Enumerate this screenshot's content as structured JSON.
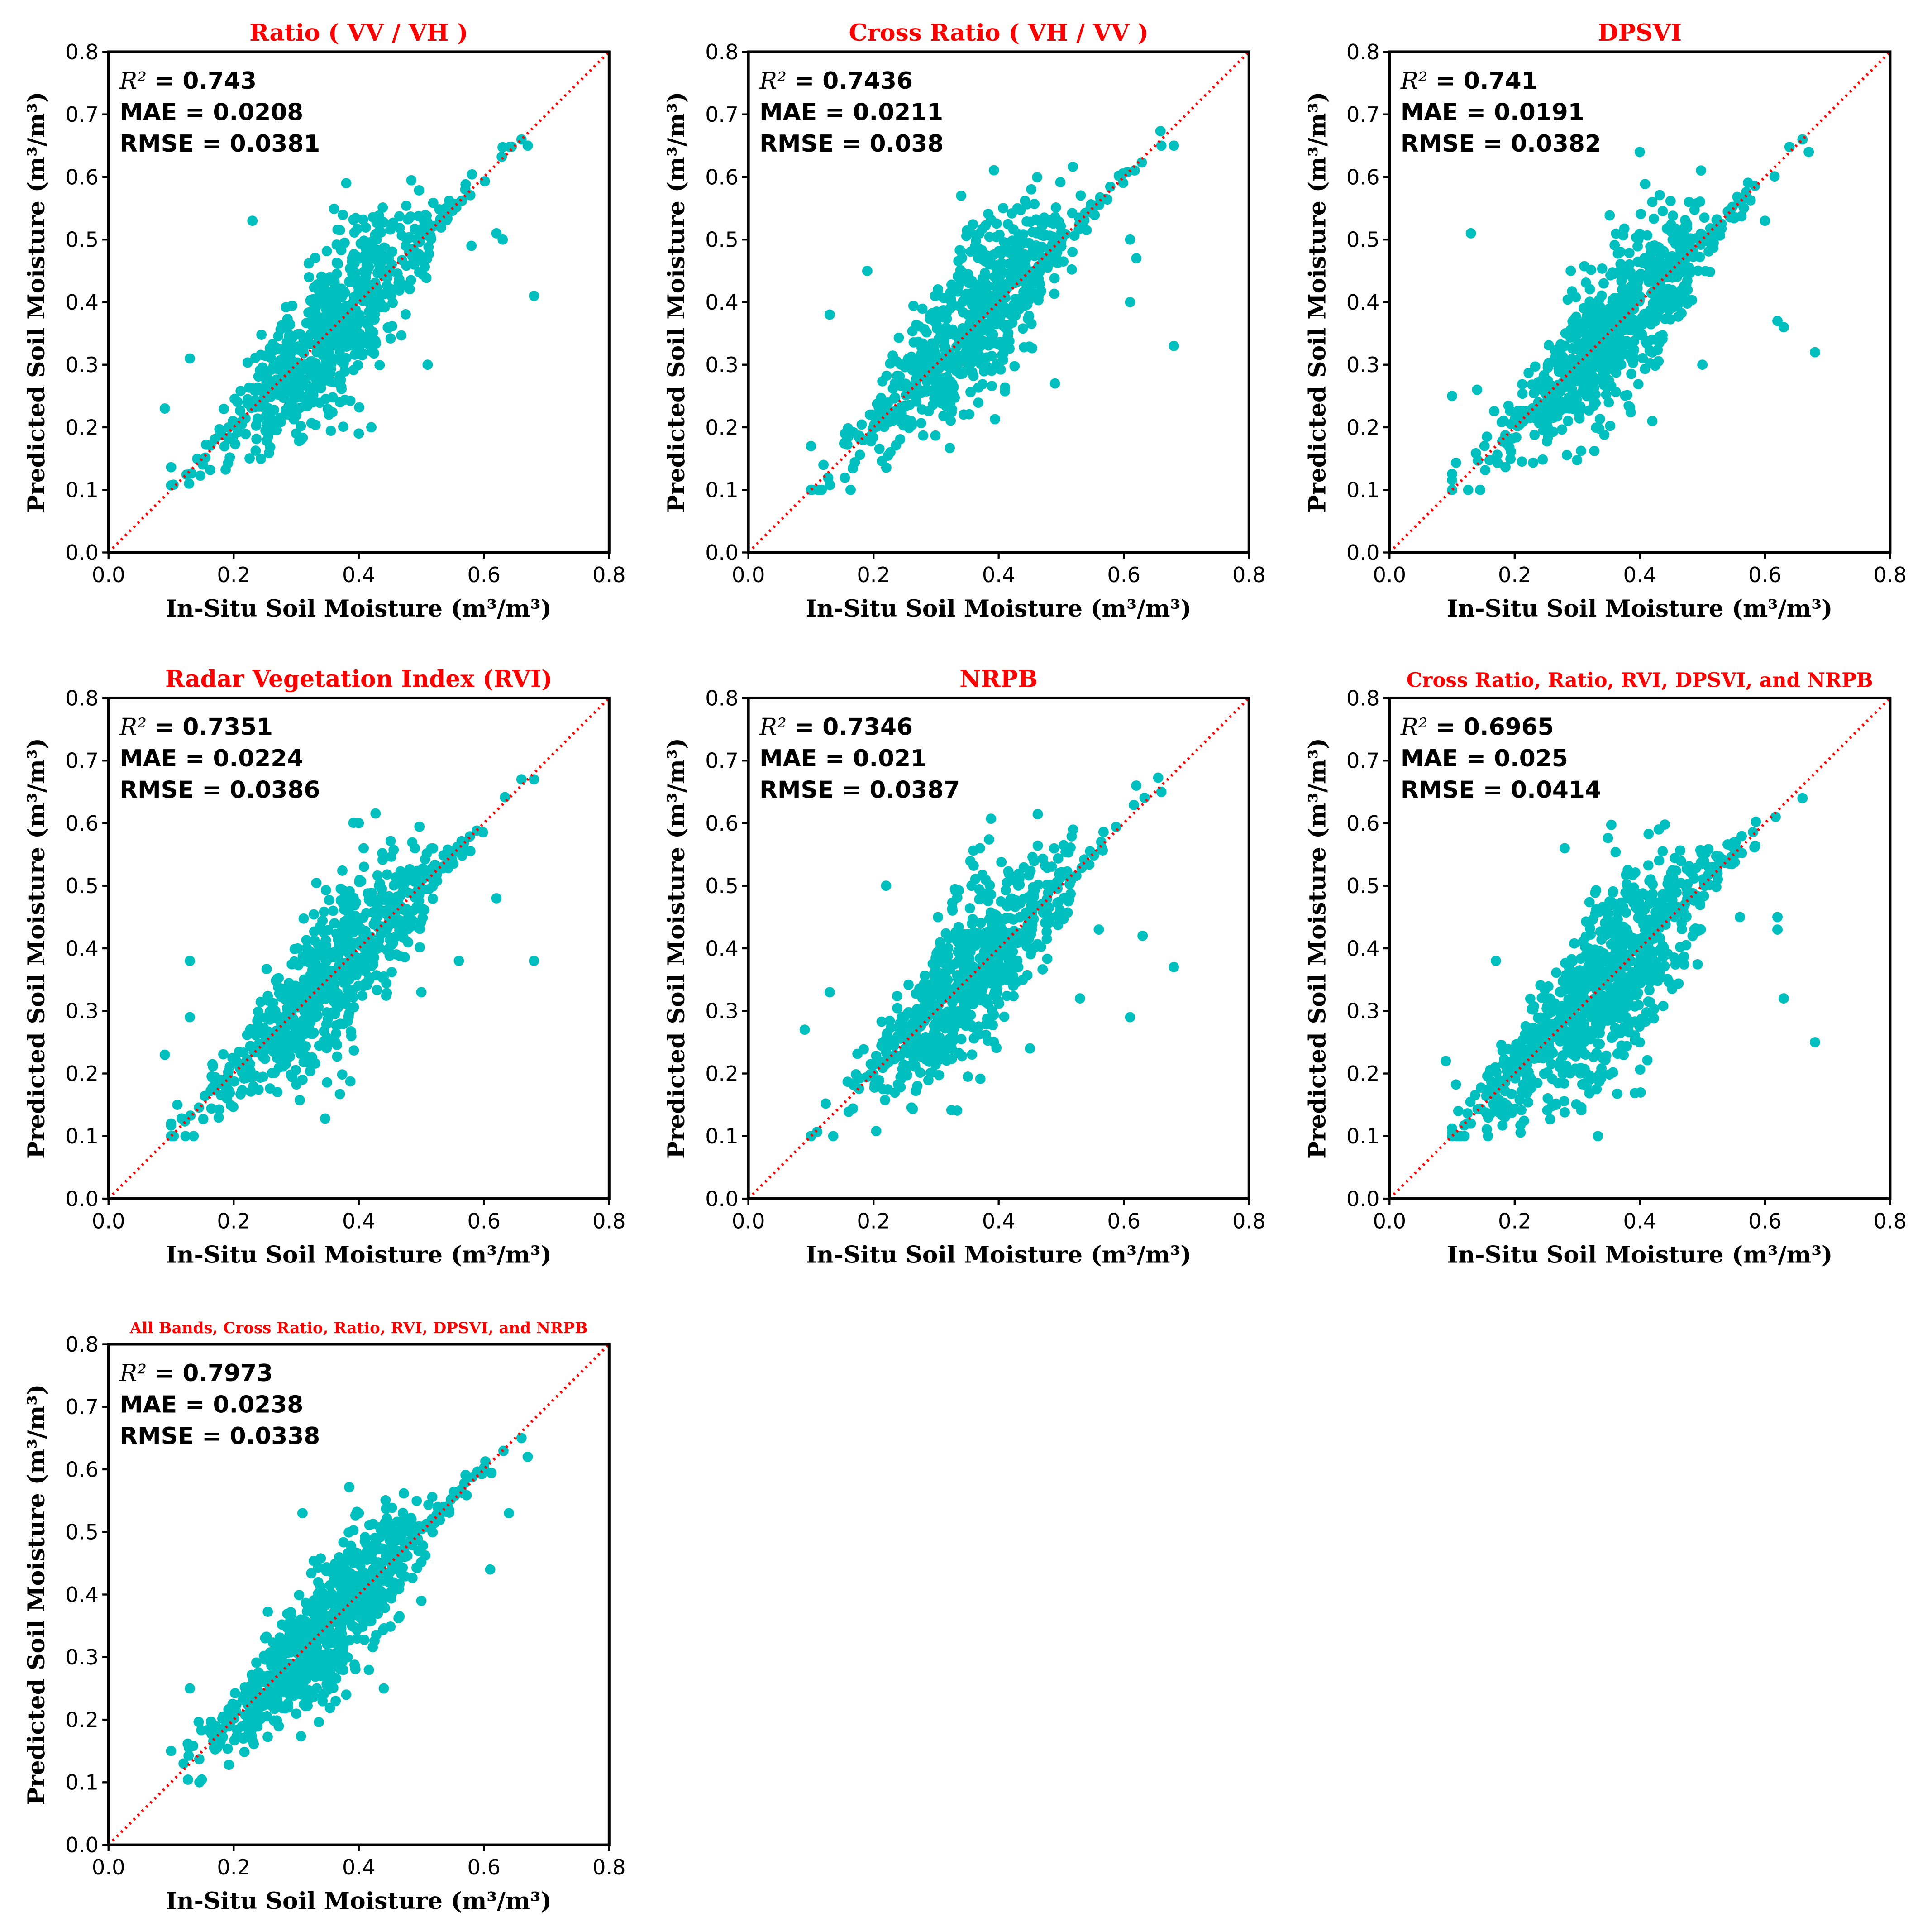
{
  "figure": {
    "xlabel": "In-Situ Soil Moisture",
    "ylabel": "Predicted Soil Moisture",
    "unit_label": "m³/m³",
    "point_color": "#00bfbf",
    "reference_line_color": "#ff0000",
    "title_color": "#ff0000"
  },
  "chart_data": [
    {
      "type": "scatter",
      "title": "Ratio ( VV / VH )",
      "xlabel": "In-Situ Soil Moisture (m³/m³)",
      "ylabel": "Predicted Soil Moisture (m³/m³)",
      "xlim": [
        0,
        0.8
      ],
      "ylim": [
        0,
        0.8
      ],
      "xticks": [
        "0.0",
        "0.2",
        "0.4",
        "0.6",
        "0.8"
      ],
      "yticks": [
        "0.0",
        "0.1",
        "0.2",
        "0.3",
        "0.4",
        "0.5",
        "0.6",
        "0.7",
        "0.8"
      ],
      "metrics": {
        "r2_label": "R²",
        "r2": "0.743",
        "mae_label": "MAE",
        "mae": "0.0208",
        "rmse_label": "RMSE",
        "rmse": "0.0381"
      },
      "reference_line": [
        [
          0,
          0
        ],
        [
          0.8,
          0.8
        ]
      ],
      "cluster": {
        "x_mean": 0.36,
        "x_sd": 0.09,
        "noise_sd": 0.045,
        "n": 700,
        "x_min": 0.1,
        "x_max": 0.67,
        "seed": 11
      },
      "outliers": [
        [
          0.09,
          0.23
        ],
        [
          0.13,
          0.31
        ],
        [
          0.23,
          0.53
        ],
        [
          0.38,
          0.59
        ],
        [
          0.62,
          0.51
        ],
        [
          0.63,
          0.5
        ],
        [
          0.68,
          0.41
        ],
        [
          0.58,
          0.49
        ],
        [
          0.66,
          0.66
        ],
        [
          0.67,
          0.65
        ],
        [
          0.4,
          0.19
        ],
        [
          0.42,
          0.2
        ],
        [
          0.51,
          0.3
        ],
        [
          0.37,
          0.24
        ],
        [
          0.3,
          0.19
        ]
      ]
    },
    {
      "type": "scatter",
      "title": "Cross Ratio ( VH / VV )",
      "xlabel": "In-Situ Soil Moisture (m³/m³)",
      "ylabel": "Predicted Soil Moisture (m³/m³)",
      "xlim": [
        0,
        0.8
      ],
      "ylim": [
        0,
        0.8
      ],
      "xticks": [
        "0.0",
        "0.2",
        "0.4",
        "0.6",
        "0.8"
      ],
      "yticks": [
        "0.0",
        "0.1",
        "0.2",
        "0.3",
        "0.4",
        "0.5",
        "0.6",
        "0.7",
        "0.8"
      ],
      "metrics": {
        "r2_label": "R²",
        "r2": "0.7436",
        "mae_label": "MAE",
        "mae": "0.0211",
        "rmse_label": "RMSE",
        "rmse": "0.038"
      },
      "reference_line": [
        [
          0,
          0
        ],
        [
          0.8,
          0.8
        ]
      ],
      "cluster": {
        "x_mean": 0.36,
        "x_sd": 0.09,
        "noise_sd": 0.045,
        "n": 700,
        "x_min": 0.1,
        "x_max": 0.67,
        "seed": 23
      },
      "outliers": [
        [
          0.1,
          0.17
        ],
        [
          0.12,
          0.14
        ],
        [
          0.13,
          0.38
        ],
        [
          0.19,
          0.45
        ],
        [
          0.34,
          0.57
        ],
        [
          0.61,
          0.5
        ],
        [
          0.62,
          0.47
        ],
        [
          0.61,
          0.4
        ],
        [
          0.68,
          0.33
        ],
        [
          0.49,
          0.27
        ],
        [
          0.66,
          0.65
        ],
        [
          0.68,
          0.65
        ],
        [
          0.26,
          0.21
        ],
        [
          0.43,
          0.55
        ]
      ]
    },
    {
      "type": "scatter",
      "title": "DPSVI",
      "xlabel": "In-Situ Soil Moisture (m³/m³)",
      "ylabel": "Predicted Soil Moisture (m³/m³)",
      "xlim": [
        0,
        0.8
      ],
      "ylim": [
        0,
        0.8
      ],
      "xticks": [
        "0.0",
        "0.2",
        "0.4",
        "0.6",
        "0.8"
      ],
      "yticks": [
        "0.0",
        "0.1",
        "0.2",
        "0.3",
        "0.4",
        "0.5",
        "0.6",
        "0.7",
        "0.8"
      ],
      "metrics": {
        "r2_label": "R²",
        "r2": "0.741",
        "mae_label": "MAE",
        "mae": "0.0191",
        "rmse_label": "RMSE",
        "rmse": "0.0382"
      },
      "reference_line": [
        [
          0,
          0
        ],
        [
          0.8,
          0.8
        ]
      ],
      "cluster": {
        "x_mean": 0.36,
        "x_sd": 0.09,
        "noise_sd": 0.045,
        "n": 700,
        "x_min": 0.1,
        "x_max": 0.67,
        "seed": 37
      },
      "outliers": [
        [
          0.1,
          0.25
        ],
        [
          0.13,
          0.51
        ],
        [
          0.14,
          0.26
        ],
        [
          0.4,
          0.64
        ],
        [
          0.42,
          0.56
        ],
        [
          0.6,
          0.53
        ],
        [
          0.62,
          0.37
        ],
        [
          0.63,
          0.36
        ],
        [
          0.68,
          0.32
        ],
        [
          0.5,
          0.3
        ],
        [
          0.66,
          0.66
        ],
        [
          0.67,
          0.64
        ],
        [
          0.42,
          0.21
        ]
      ]
    },
    {
      "type": "scatter",
      "title": "Radar Vegetation Index (RVI)",
      "xlabel": "In-Situ Soil Moisture (m³/m³)",
      "ylabel": "Predicted Soil Moisture (m³/m³)",
      "xlim": [
        0,
        0.8
      ],
      "ylim": [
        0,
        0.8
      ],
      "xticks": [
        "0.0",
        "0.2",
        "0.4",
        "0.6",
        "0.8"
      ],
      "yticks": [
        "0.0",
        "0.1",
        "0.2",
        "0.3",
        "0.4",
        "0.5",
        "0.6",
        "0.7",
        "0.8"
      ],
      "metrics": {
        "r2_label": "R²",
        "r2": "0.7351",
        "mae_label": "MAE",
        "mae": "0.0224",
        "rmse_label": "RMSE",
        "rmse": "0.0386"
      },
      "reference_line": [
        [
          0,
          0
        ],
        [
          0.8,
          0.8
        ]
      ],
      "cluster": {
        "x_mean": 0.36,
        "x_sd": 0.09,
        "noise_sd": 0.045,
        "n": 700,
        "x_min": 0.1,
        "x_max": 0.67,
        "seed": 53
      },
      "outliers": [
        [
          0.09,
          0.23
        ],
        [
          0.13,
          0.38
        ],
        [
          0.13,
          0.29
        ],
        [
          0.4,
          0.6
        ],
        [
          0.62,
          0.48
        ],
        [
          0.68,
          0.38
        ],
        [
          0.56,
          0.38
        ],
        [
          0.5,
          0.33
        ],
        [
          0.31,
          0.19
        ],
        [
          0.66,
          0.67
        ],
        [
          0.68,
          0.67
        ],
        [
          0.11,
          0.15
        ]
      ]
    },
    {
      "type": "scatter",
      "title": "NRPB",
      "xlabel": "In-Situ Soil Moisture (m³/m³)",
      "ylabel": "Predicted Soil Moisture (m³/m³)",
      "xlim": [
        0,
        0.8
      ],
      "ylim": [
        0,
        0.8
      ],
      "xticks": [
        "0.0",
        "0.2",
        "0.4",
        "0.6",
        "0.8"
      ],
      "yticks": [
        "0.0",
        "0.1",
        "0.2",
        "0.3",
        "0.4",
        "0.5",
        "0.6",
        "0.7",
        "0.8"
      ],
      "metrics": {
        "r2_label": "R²",
        "r2": "0.7346",
        "mae_label": "MAE",
        "mae": "0.021",
        "rmse_label": "RMSE",
        "rmse": "0.0387"
      },
      "reference_line": [
        [
          0,
          0
        ],
        [
          0.8,
          0.8
        ]
      ],
      "cluster": {
        "x_mean": 0.36,
        "x_sd": 0.09,
        "noise_sd": 0.045,
        "n": 700,
        "x_min": 0.1,
        "x_max": 0.67,
        "seed": 71
      },
      "outliers": [
        [
          0.09,
          0.27
        ],
        [
          0.13,
          0.33
        ],
        [
          0.22,
          0.5
        ],
        [
          0.37,
          0.56
        ],
        [
          0.56,
          0.43
        ],
        [
          0.61,
          0.29
        ],
        [
          0.63,
          0.42
        ],
        [
          0.68,
          0.37
        ],
        [
          0.53,
          0.32
        ],
        [
          0.27,
          0.18
        ],
        [
          0.45,
          0.24
        ],
        [
          0.66,
          0.65
        ],
        [
          0.62,
          0.66
        ]
      ]
    },
    {
      "type": "scatter",
      "title": "Cross Ratio, Ratio, RVI, DPSVI, and NRPB",
      "xlabel": "In-Situ Soil Moisture (m³/m³)",
      "ylabel": "Predicted Soil Moisture (m³/m³)",
      "xlim": [
        0,
        0.8
      ],
      "ylim": [
        0,
        0.8
      ],
      "xticks": [
        "0.0",
        "0.2",
        "0.4",
        "0.6",
        "0.8"
      ],
      "yticks": [
        "0.0",
        "0.1",
        "0.2",
        "0.3",
        "0.4",
        "0.5",
        "0.6",
        "0.7",
        "0.8"
      ],
      "metrics": {
        "r2_label": "R²",
        "r2": "0.6965",
        "mae_label": "MAE",
        "mae": "0.025",
        "rmse_label": "RMSE",
        "rmse": "0.0414"
      },
      "reference_line": [
        [
          0,
          0
        ],
        [
          0.8,
          0.8
        ]
      ],
      "cluster": {
        "x_mean": 0.34,
        "x_sd": 0.1,
        "noise_sd": 0.05,
        "n": 850,
        "x_min": 0.1,
        "x_max": 0.67,
        "seed": 89
      },
      "outliers": [
        [
          0.09,
          0.22
        ],
        [
          0.11,
          0.14
        ],
        [
          0.17,
          0.38
        ],
        [
          0.28,
          0.56
        ],
        [
          0.56,
          0.45
        ],
        [
          0.62,
          0.45
        ],
        [
          0.62,
          0.43
        ],
        [
          0.63,
          0.32
        ],
        [
          0.68,
          0.25
        ],
        [
          0.45,
          0.52
        ],
        [
          0.66,
          0.64
        ],
        [
          0.13,
          0.12
        ],
        [
          0.32,
          0.19
        ]
      ]
    },
    {
      "type": "scatter",
      "title": "All Bands, Cross Ratio, Ratio, RVI, DPSVI, and NRPB",
      "xlabel": "In-Situ Soil Moisture (m³/m³)",
      "ylabel": "Predicted Soil Moisture (m³/m³)",
      "xlim": [
        0,
        0.8
      ],
      "ylim": [
        0,
        0.8
      ],
      "xticks": [
        "0.0",
        "0.2",
        "0.4",
        "0.6",
        "0.8"
      ],
      "yticks": [
        "0.0",
        "0.1",
        "0.2",
        "0.3",
        "0.4",
        "0.5",
        "0.6",
        "0.7",
        "0.8"
      ],
      "metrics": {
        "r2_label": "R²",
        "r2": "0.7973",
        "mae_label": "MAE",
        "mae": "0.0238",
        "rmse_label": "RMSE",
        "rmse": "0.0338"
      },
      "reference_line": [
        [
          0,
          0
        ],
        [
          0.8,
          0.8
        ]
      ],
      "cluster": {
        "x_mean": 0.35,
        "x_sd": 0.09,
        "noise_sd": 0.04,
        "n": 800,
        "x_min": 0.1,
        "x_max": 0.67,
        "seed": 97
      },
      "outliers": [
        [
          0.1,
          0.15
        ],
        [
          0.13,
          0.25
        ],
        [
          0.31,
          0.53
        ],
        [
          0.4,
          0.53
        ],
        [
          0.61,
          0.44
        ],
        [
          0.64,
          0.53
        ],
        [
          0.66,
          0.65
        ],
        [
          0.67,
          0.62
        ],
        [
          0.5,
          0.39
        ],
        [
          0.12,
          0.13
        ],
        [
          0.38,
          0.24
        ],
        [
          0.44,
          0.25
        ]
      ]
    }
  ]
}
